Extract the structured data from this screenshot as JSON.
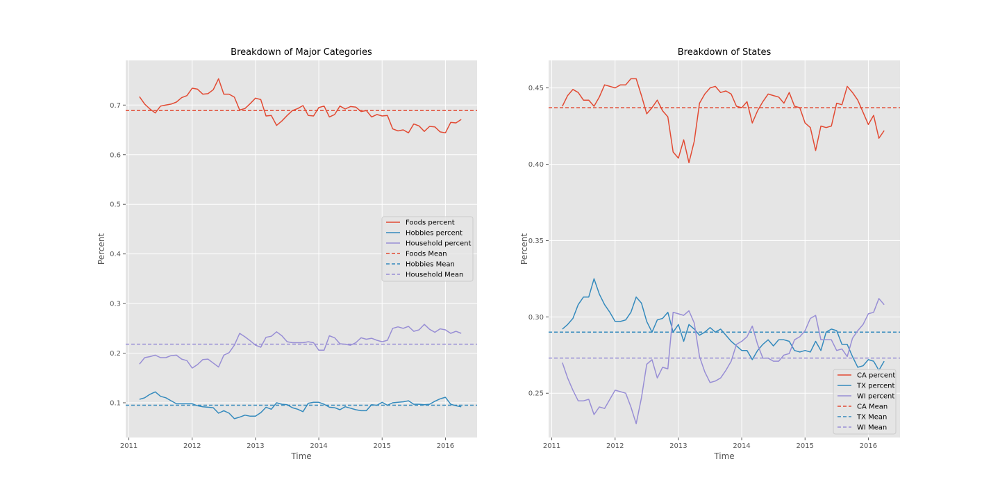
{
  "chart_data": [
    {
      "type": "line",
      "title": "Breakdown of Major Categories",
      "xlabel": "Time",
      "ylabel": "Percent",
      "xlim": [
        2010.95,
        2016.5
      ],
      "ylim": [
        0.03,
        0.79
      ],
      "x_ticks": [
        2011,
        2012,
        2013,
        2014,
        2015,
        2016
      ],
      "x_tick_labels": [
        "2011",
        "2012",
        "2013",
        "2014",
        "2015",
        "2016"
      ],
      "y_ticks": [
        0.1,
        0.2,
        0.3,
        0.4,
        0.5,
        0.6,
        0.7
      ],
      "y_tick_labels": [
        "0.1",
        "0.2",
        "0.3",
        "0.4",
        "0.5",
        "0.6",
        "0.7"
      ],
      "legend_position": "center-right",
      "grid": true,
      "x_start": 2011.167,
      "x_step": 0.08333,
      "series": [
        {
          "name": "Foods percent",
          "color": "#E24A33",
          "values": [
            0.717,
            0.702,
            0.692,
            0.684,
            0.698,
            0.7,
            0.702,
            0.706,
            0.715,
            0.719,
            0.734,
            0.732,
            0.722,
            0.723,
            0.731,
            0.753,
            0.722,
            0.722,
            0.716,
            0.69,
            0.693,
            0.703,
            0.714,
            0.711,
            0.678,
            0.679,
            0.659,
            0.668,
            0.679,
            0.689,
            0.693,
            0.699,
            0.679,
            0.678,
            0.695,
            0.698,
            0.676,
            0.681,
            0.698,
            0.692,
            0.697,
            0.696,
            0.687,
            0.689,
            0.676,
            0.681,
            0.678,
            0.679,
            0.652,
            0.648,
            0.65,
            0.644,
            0.662,
            0.658,
            0.647,
            0.657,
            0.656,
            0.646,
            0.644,
            0.665,
            0.664,
            0.671
          ]
        },
        {
          "name": "Hobbies percent",
          "color": "#348ABD",
          "values": [
            0.107,
            0.11,
            0.117,
            0.122,
            0.113,
            0.11,
            0.104,
            0.098,
            0.098,
            0.098,
            0.098,
            0.094,
            0.092,
            0.091,
            0.09,
            0.079,
            0.084,
            0.079,
            0.068,
            0.071,
            0.075,
            0.073,
            0.073,
            0.08,
            0.091,
            0.087,
            0.1,
            0.097,
            0.096,
            0.09,
            0.087,
            0.082,
            0.099,
            0.101,
            0.101,
            0.097,
            0.091,
            0.09,
            0.086,
            0.092,
            0.089,
            0.086,
            0.084,
            0.084,
            0.096,
            0.095,
            0.101,
            0.095,
            0.1,
            0.101,
            0.102,
            0.104,
            0.097,
            0.097,
            0.096,
            0.097,
            0.103,
            0.108,
            0.111,
            0.097,
            0.094,
            0.092
          ]
        },
        {
          "name": "Household percent",
          "color": "#988ED5",
          "values": [
            0.178,
            0.191,
            0.193,
            0.196,
            0.191,
            0.191,
            0.195,
            0.196,
            0.188,
            0.185,
            0.17,
            0.177,
            0.187,
            0.188,
            0.18,
            0.172,
            0.196,
            0.201,
            0.216,
            0.24,
            0.233,
            0.225,
            0.216,
            0.212,
            0.232,
            0.234,
            0.243,
            0.235,
            0.223,
            0.221,
            0.221,
            0.221,
            0.223,
            0.221,
            0.206,
            0.206,
            0.235,
            0.231,
            0.219,
            0.218,
            0.216,
            0.221,
            0.231,
            0.228,
            0.23,
            0.226,
            0.223,
            0.226,
            0.25,
            0.253,
            0.25,
            0.254,
            0.244,
            0.247,
            0.258,
            0.248,
            0.242,
            0.249,
            0.247,
            0.24,
            0.244,
            0.24
          ]
        }
      ],
      "reference_lines": [
        {
          "name": "Foods Mean",
          "color": "#E24A33",
          "value": 0.689
        },
        {
          "name": "Hobbies Mean",
          "color": "#348ABD",
          "value": 0.095
        },
        {
          "name": "Household Mean",
          "color": "#988ED5",
          "value": 0.218
        }
      ]
    },
    {
      "type": "line",
      "title": "Breakdown of States",
      "xlabel": "Time",
      "ylabel": "Percent",
      "xlim": [
        2010.95,
        2016.5
      ],
      "ylim": [
        0.221,
        0.468
      ],
      "x_ticks": [
        2011,
        2012,
        2013,
        2014,
        2015,
        2016
      ],
      "x_tick_labels": [
        "2011",
        "2012",
        "2013",
        "2014",
        "2015",
        "2016"
      ],
      "y_ticks": [
        0.25,
        0.3,
        0.35,
        0.4,
        0.45
      ],
      "y_tick_labels": [
        "0.25",
        "0.30",
        "0.35",
        "0.40",
        "0.45"
      ],
      "legend_position": "lower-right",
      "grid": true,
      "x_start": 2011.167,
      "x_step": 0.08333,
      "series": [
        {
          "name": "CA percent",
          "color": "#E24A33",
          "values": [
            0.438,
            0.445,
            0.449,
            0.447,
            0.442,
            0.442,
            0.438,
            0.444,
            0.452,
            0.451,
            0.45,
            0.452,
            0.452,
            0.456,
            0.456,
            0.445,
            0.433,
            0.437,
            0.442,
            0.435,
            0.431,
            0.408,
            0.404,
            0.416,
            0.401,
            0.415,
            0.44,
            0.446,
            0.45,
            0.451,
            0.447,
            0.448,
            0.446,
            0.438,
            0.437,
            0.441,
            0.427,
            0.435,
            0.441,
            0.446,
            0.445,
            0.444,
            0.44,
            0.447,
            0.438,
            0.437,
            0.427,
            0.424,
            0.409,
            0.425,
            0.424,
            0.425,
            0.44,
            0.439,
            0.451,
            0.447,
            0.442,
            0.434,
            0.426,
            0.432,
            0.417,
            0.422
          ]
        },
        {
          "name": "TX percent",
          "color": "#348ABD",
          "values": [
            0.292,
            0.295,
            0.299,
            0.308,
            0.313,
            0.313,
            0.325,
            0.315,
            0.308,
            0.303,
            0.297,
            0.297,
            0.298,
            0.303,
            0.313,
            0.309,
            0.297,
            0.29,
            0.298,
            0.299,
            0.303,
            0.29,
            0.295,
            0.284,
            0.295,
            0.292,
            0.288,
            0.29,
            0.293,
            0.29,
            0.292,
            0.288,
            0.284,
            0.281,
            0.278,
            0.278,
            0.272,
            0.278,
            0.282,
            0.285,
            0.281,
            0.285,
            0.285,
            0.284,
            0.278,
            0.277,
            0.278,
            0.277,
            0.284,
            0.278,
            0.29,
            0.292,
            0.291,
            0.282,
            0.282,
            0.274,
            0.267,
            0.268,
            0.272,
            0.271,
            0.265,
            0.271
          ]
        },
        {
          "name": "WI percent",
          "color": "#988ED5",
          "values": [
            0.27,
            0.26,
            0.252,
            0.245,
            0.245,
            0.246,
            0.236,
            0.241,
            0.24,
            0.246,
            0.252,
            0.251,
            0.25,
            0.241,
            0.23,
            0.247,
            0.269,
            0.272,
            0.26,
            0.267,
            0.266,
            0.303,
            0.302,
            0.301,
            0.304,
            0.296,
            0.274,
            0.264,
            0.257,
            0.258,
            0.26,
            0.265,
            0.271,
            0.282,
            0.284,
            0.287,
            0.294,
            0.282,
            0.273,
            0.273,
            0.271,
            0.271,
            0.275,
            0.276,
            0.285,
            0.287,
            0.291,
            0.299,
            0.301,
            0.285,
            0.285,
            0.285,
            0.278,
            0.279,
            0.274,
            0.286,
            0.291,
            0.295,
            0.302,
            0.303,
            0.312,
            0.308
          ]
        }
      ],
      "reference_lines": [
        {
          "name": "CA Mean",
          "color": "#E24A33",
          "value": 0.437
        },
        {
          "name": "TX Mean",
          "color": "#348ABD",
          "value": 0.29
        },
        {
          "name": "WI Mean",
          "color": "#988ED5",
          "value": 0.273
        }
      ]
    }
  ]
}
